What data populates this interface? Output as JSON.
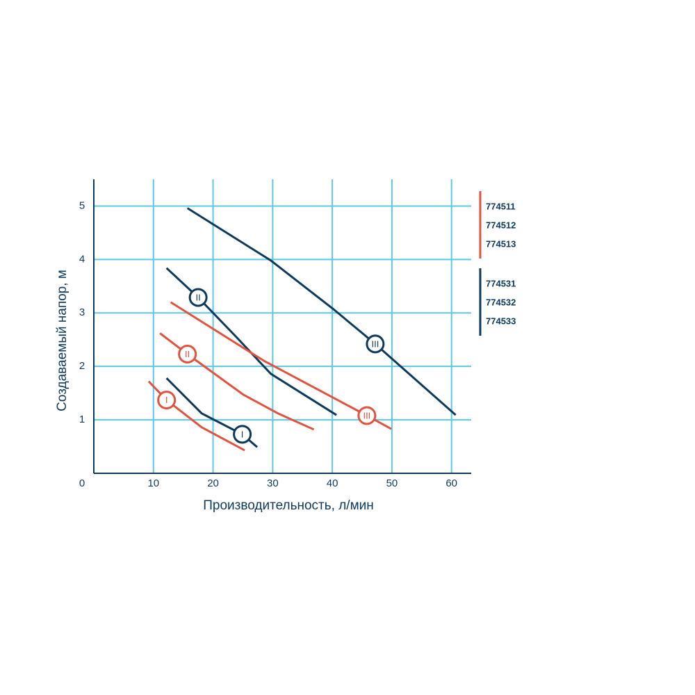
{
  "chart_data": {
    "type": "line",
    "x_label": "Производительность, л/мин",
    "y_label": "Создаваемый напор, м",
    "xlim": [
      0,
      63.3
    ],
    "ylim": [
      0,
      5.5
    ],
    "xticks": [
      0,
      10,
      20,
      30,
      40,
      50,
      60
    ],
    "yticks": [
      1,
      2,
      3,
      4,
      5
    ],
    "grid": true,
    "grid_color": "#5bc8e8",
    "series": [
      {
        "name": "III",
        "color": "#0d3a5c",
        "x": [
          15.7,
          29.7,
          40.2,
          47.2,
          60.7
        ],
        "values": [
          4.96,
          3.98,
          3.07,
          2.42,
          1.09
        ],
        "label_point": [
          47.2,
          2.42
        ]
      },
      {
        "name": "II",
        "color": "#0d3a5c",
        "x": [
          12.2,
          17.5,
          23.9,
          29.7,
          40.7
        ],
        "values": [
          3.84,
          3.29,
          2.55,
          1.86,
          1.09
        ],
        "label_point": [
          17.5,
          3.29
        ]
      },
      {
        "name": "I",
        "color": "#0d3a5c",
        "x": [
          12.2,
          18.1,
          24.9,
          27.4
        ],
        "values": [
          1.78,
          1.12,
          0.73,
          0.49
        ],
        "label_point": [
          24.9,
          0.73
        ]
      },
      {
        "name": "III",
        "color": "#e0533f",
        "x": [
          12.9,
          28.6,
          45.8,
          49.9
        ],
        "values": [
          3.2,
          2.1,
          1.08,
          0.83
        ],
        "label_point": [
          45.8,
          1.08
        ]
      },
      {
        "name": "II",
        "color": "#e0533f",
        "x": [
          11.1,
          15.7,
          25.1,
          30.9,
          36.9
        ],
        "values": [
          2.62,
          2.23,
          1.47,
          1.12,
          0.82
        ],
        "label_point": [
          15.7,
          2.23
        ]
      },
      {
        "name": "I",
        "color": "#e0533f",
        "x": [
          9.2,
          12.2,
          18.1,
          25.3
        ],
        "values": [
          1.72,
          1.37,
          0.86,
          0.43
        ],
        "label_point": [
          12.2,
          1.37
        ]
      }
    ],
    "legend_groups": [
      {
        "color": "#e0533f",
        "items": [
          "774511",
          "774512",
          "774513"
        ]
      },
      {
        "color": "#0d3a5c",
        "items": [
          "774531",
          "774532",
          "774533"
        ]
      }
    ]
  }
}
